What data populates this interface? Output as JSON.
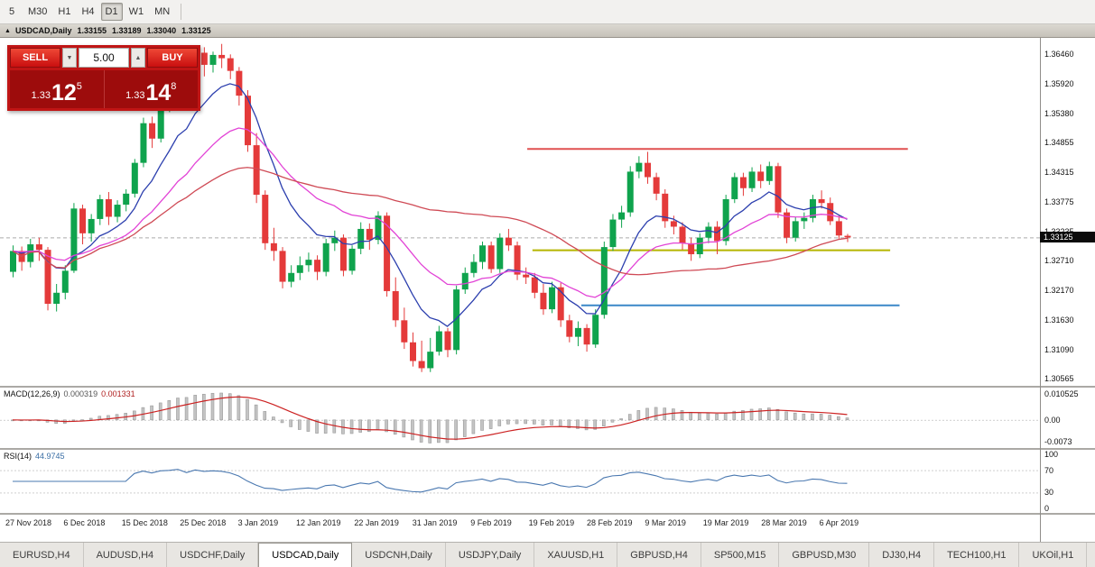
{
  "toolbar": {
    "timeframes": [
      {
        "label": "5",
        "active": false
      },
      {
        "label": "M30",
        "active": false
      },
      {
        "label": "H1",
        "active": false
      },
      {
        "label": "H4",
        "active": false
      },
      {
        "label": "D1",
        "active": true
      },
      {
        "label": "W1",
        "active": false
      },
      {
        "label": "MN",
        "active": false
      }
    ]
  },
  "chart": {
    "titlebar": {
      "symbol": "USDCAD,Daily",
      "open": "1.33155",
      "high": "1.33189",
      "low": "1.33040",
      "close": "1.33125"
    }
  },
  "trade_widget": {
    "sell_label": "SELL",
    "buy_label": "BUY",
    "volume": "5.00",
    "decrease_icon": "▼",
    "increase_icon": "▲",
    "sell_price": {
      "prefix": "1.33",
      "big": "12",
      "sup": "5"
    },
    "buy_price": {
      "prefix": "1.33",
      "big": "14",
      "sup": "8"
    }
  },
  "price_axis": {
    "labels": [
      "1.36460",
      "1.35920",
      "1.35380",
      "1.34855",
      "1.34315",
      "1.33775",
      "1.33235",
      "1.32710",
      "1.32170",
      "1.31630",
      "1.31090",
      "1.30565"
    ],
    "current": "1.33125"
  },
  "date_axis": [
    "27 Nov 2018",
    "6 Dec 2018",
    "15 Dec 2018",
    "25 Dec 2018",
    "3 Jan 2019",
    "12 Jan 2019",
    "22 Jan 2019",
    "31 Jan 2019",
    "9 Feb 2019",
    "19 Feb 2019",
    "28 Feb 2019",
    "9 Mar 2019",
    "19 Mar 2019",
    "28 Mar 2019",
    "6 Apr 2019"
  ],
  "indicators": {
    "macd": {
      "label": "MACD(12,26,9)",
      "value_main": "0.000319",
      "value_signal": "0.001331",
      "axis": [
        "0.010525",
        "0.00",
        "-0.0073"
      ]
    },
    "rsi": {
      "label": "RSI(14)",
      "value": "44.9745",
      "axis": [
        "100",
        "70",
        "30",
        "0"
      ],
      "levels": [
        70,
        30
      ]
    }
  },
  "tabs": [
    {
      "label": "EURUSD,H4",
      "active": false
    },
    {
      "label": "AUDUSD,H4",
      "active": false
    },
    {
      "label": "USDCHF,Daily",
      "active": false
    },
    {
      "label": "USDCAD,Daily",
      "active": true
    },
    {
      "label": "USDCNH,Daily",
      "active": false
    },
    {
      "label": "USDJPY,Daily",
      "active": false
    },
    {
      "label": "XAUUSD,H1",
      "active": false
    },
    {
      "label": "GBPUSD,H4",
      "active": false
    },
    {
      "label": "SP500,M15",
      "active": false
    },
    {
      "label": "GBPUSD,M30",
      "active": false
    },
    {
      "label": "DJ30,H4",
      "active": false
    },
    {
      "label": "TECH100,H1",
      "active": false
    },
    {
      "label": "UKOil,H1",
      "active": false
    }
  ],
  "chart_data": {
    "type": "candlestick",
    "title": "USDCAD,Daily",
    "symbol": "USDCAD",
    "timeframe": "D1",
    "ylim": [
      1.3043,
      1.3675
    ],
    "current_price": 1.33125,
    "colors": {
      "up": "#0fa34d",
      "down": "#e43a3a",
      "current_line": "#ababab",
      "macd_hist": "#c4c4c4",
      "macd_hist_border": "#9a9a9a",
      "macd_signal": "#cc2222",
      "rsi": "#4a78b0"
    },
    "ma": [
      {
        "name": "fast-ma",
        "type": "ema",
        "period": 9,
        "color": "#2c3fae"
      },
      {
        "name": "mid-ma",
        "type": "ema",
        "period": 21,
        "color": "#e243d6"
      },
      {
        "name": "slow-ma",
        "type": "sma",
        "period": 45,
        "color": "#cf4a55"
      }
    ],
    "macd": {
      "fast": 12,
      "slow": 26,
      "signal": 9
    },
    "rsi": {
      "period": 14
    },
    "hlines": [
      {
        "name": "resistance-line",
        "price": 1.3474,
        "color": "#e05050",
        "x1": 0.507,
        "x2": 0.873
      },
      {
        "name": "support-line",
        "price": 1.329,
        "color": "#b5b500",
        "x1": 0.512,
        "x2": 0.856
      },
      {
        "name": "lower-support-line",
        "price": 1.319,
        "color": "#3a87c8",
        "x1": 0.559,
        "x2": 0.865
      }
    ],
    "candles": [
      [
        1.325,
        1.3298,
        1.324,
        1.3288
      ],
      [
        1.3288,
        1.3296,
        1.3252,
        1.3268
      ],
      [
        1.3268,
        1.331,
        1.3258,
        1.33
      ],
      [
        1.33,
        1.3312,
        1.327,
        1.329
      ],
      [
        1.329,
        1.3295,
        1.318,
        1.3192
      ],
      [
        1.3192,
        1.3228,
        1.3178,
        1.3212
      ],
      [
        1.3212,
        1.3262,
        1.32,
        1.3252
      ],
      [
        1.3252,
        1.3375,
        1.3248,
        1.3365
      ],
      [
        1.3365,
        1.3372,
        1.33,
        1.332
      ],
      [
        1.332,
        1.3355,
        1.3305,
        1.3346
      ],
      [
        1.3346,
        1.339,
        1.3335,
        1.3382
      ],
      [
        1.3382,
        1.3395,
        1.3335,
        1.335
      ],
      [
        1.335,
        1.338,
        1.334,
        1.3372
      ],
      [
        1.3372,
        1.34,
        1.336,
        1.3392
      ],
      [
        1.3392,
        1.3455,
        1.3385,
        1.3448
      ],
      [
        1.3448,
        1.353,
        1.344,
        1.352
      ],
      [
        1.352,
        1.3532,
        1.3475,
        1.3492
      ],
      [
        1.3492,
        1.3565,
        1.3485,
        1.3558
      ],
      [
        1.3558,
        1.3585,
        1.354,
        1.3572
      ],
      [
        1.3572,
        1.3612,
        1.3565,
        1.3608
      ],
      [
        1.3608,
        1.3618,
        1.3552,
        1.356
      ],
      [
        1.356,
        1.3655,
        1.3555,
        1.3648
      ],
      [
        1.3648,
        1.3658,
        1.3605,
        1.3626
      ],
      [
        1.3626,
        1.365,
        1.3612,
        1.3644
      ],
      [
        1.3644,
        1.3664,
        1.362,
        1.3638
      ],
      [
        1.3638,
        1.3645,
        1.36,
        1.3615
      ],
      [
        1.3615,
        1.3622,
        1.3552,
        1.357
      ],
      [
        1.357,
        1.358,
        1.3468,
        1.348
      ],
      [
        1.348,
        1.3502,
        1.3375,
        1.339
      ],
      [
        1.339,
        1.3398,
        1.329,
        1.3302
      ],
      [
        1.3302,
        1.333,
        1.327,
        1.3288
      ],
      [
        1.3288,
        1.3295,
        1.322,
        1.3232
      ],
      [
        1.3232,
        1.3262,
        1.3222,
        1.3248
      ],
      [
        1.3248,
        1.3278,
        1.3235,
        1.3262
      ],
      [
        1.3262,
        1.3285,
        1.325,
        1.3272
      ],
      [
        1.3272,
        1.328,
        1.3235,
        1.325
      ],
      [
        1.325,
        1.331,
        1.3242,
        1.3302
      ],
      [
        1.3302,
        1.3325,
        1.3288,
        1.3312
      ],
      [
        1.3312,
        1.3318,
        1.3242,
        1.3252
      ],
      [
        1.3252,
        1.3298,
        1.3245,
        1.3292
      ],
      [
        1.3292,
        1.334,
        1.3282,
        1.3328
      ],
      [
        1.3328,
        1.3338,
        1.329,
        1.3308
      ],
      [
        1.3308,
        1.336,
        1.33,
        1.3352
      ],
      [
        1.3352,
        1.3358,
        1.3205,
        1.3215
      ],
      [
        1.3215,
        1.324,
        1.315,
        1.3162
      ],
      [
        1.3162,
        1.3185,
        1.311,
        1.3122
      ],
      [
        1.3122,
        1.314,
        1.3078,
        1.3088
      ],
      [
        1.3088,
        1.3125,
        1.3068,
        1.3075
      ],
      [
        1.3075,
        1.313,
        1.3068,
        1.3105
      ],
      [
        1.3105,
        1.3152,
        1.3098,
        1.3142
      ],
      [
        1.3142,
        1.3148,
        1.3095,
        1.3108
      ],
      [
        1.3108,
        1.3225,
        1.31,
        1.3218
      ],
      [
        1.3218,
        1.3258,
        1.321,
        1.3248
      ],
      [
        1.3248,
        1.3282,
        1.324,
        1.3268
      ],
      [
        1.3268,
        1.3305,
        1.3255,
        1.3298
      ],
      [
        1.3298,
        1.3305,
        1.3248,
        1.3255
      ],
      [
        1.3255,
        1.332,
        1.3248,
        1.3312
      ],
      [
        1.3312,
        1.3328,
        1.3288,
        1.3298
      ],
      [
        1.3298,
        1.3305,
        1.3235,
        1.3245
      ],
      [
        1.3245,
        1.3258,
        1.3228,
        1.324
      ],
      [
        1.324,
        1.3248,
        1.3202,
        1.3212
      ],
      [
        1.3212,
        1.3228,
        1.3172,
        1.3182
      ],
      [
        1.3182,
        1.3232,
        1.3175,
        1.3222
      ],
      [
        1.3222,
        1.323,
        1.315,
        1.3162
      ],
      [
        1.3162,
        1.3172,
        1.3122,
        1.3132
      ],
      [
        1.3132,
        1.316,
        1.3115,
        1.3148
      ],
      [
        1.3148,
        1.3155,
        1.3105,
        1.3118
      ],
      [
        1.3118,
        1.3182,
        1.3112,
        1.3172
      ],
      [
        1.3172,
        1.3305,
        1.3165,
        1.3295
      ],
      [
        1.3295,
        1.3355,
        1.3288,
        1.3345
      ],
      [
        1.3345,
        1.337,
        1.333,
        1.3358
      ],
      [
        1.3358,
        1.3442,
        1.335,
        1.3432
      ],
      [
        1.3432,
        1.346,
        1.342,
        1.3448
      ],
      [
        1.3448,
        1.3468,
        1.341,
        1.3422
      ],
      [
        1.3422,
        1.343,
        1.338,
        1.3392
      ],
      [
        1.3392,
        1.34,
        1.333,
        1.3342
      ],
      [
        1.3342,
        1.3352,
        1.3318,
        1.3332
      ],
      [
        1.3332,
        1.334,
        1.329,
        1.3302
      ],
      [
        1.3302,
        1.3312,
        1.327,
        1.3282
      ],
      [
        1.3282,
        1.332,
        1.3275,
        1.3312
      ],
      [
        1.3312,
        1.334,
        1.3302,
        1.3332
      ],
      [
        1.3332,
        1.3342,
        1.3282,
        1.3306
      ],
      [
        1.3306,
        1.339,
        1.3298,
        1.3382
      ],
      [
        1.3382,
        1.343,
        1.3375,
        1.3422
      ],
      [
        1.3422,
        1.343,
        1.3388,
        1.3402
      ],
      [
        1.3402,
        1.344,
        1.3395,
        1.3432
      ],
      [
        1.3432,
        1.3445,
        1.3402,
        1.3415
      ],
      [
        1.3415,
        1.345,
        1.3408,
        1.3442
      ],
      [
        1.3442,
        1.3448,
        1.3348,
        1.3358
      ],
      [
        1.3358,
        1.3365,
        1.3302,
        1.3312
      ],
      [
        1.3312,
        1.335,
        1.3305,
        1.3342
      ],
      [
        1.3342,
        1.3358,
        1.3328,
        1.3348
      ],
      [
        1.3348,
        1.339,
        1.334,
        1.3382
      ],
      [
        1.3382,
        1.3398,
        1.3365,
        1.3375
      ],
      [
        1.3375,
        1.3385,
        1.3335,
        1.3342
      ],
      [
        1.3342,
        1.3352,
        1.331,
        1.3316
      ],
      [
        1.33155,
        1.33189,
        1.3304,
        1.33125
      ]
    ]
  }
}
